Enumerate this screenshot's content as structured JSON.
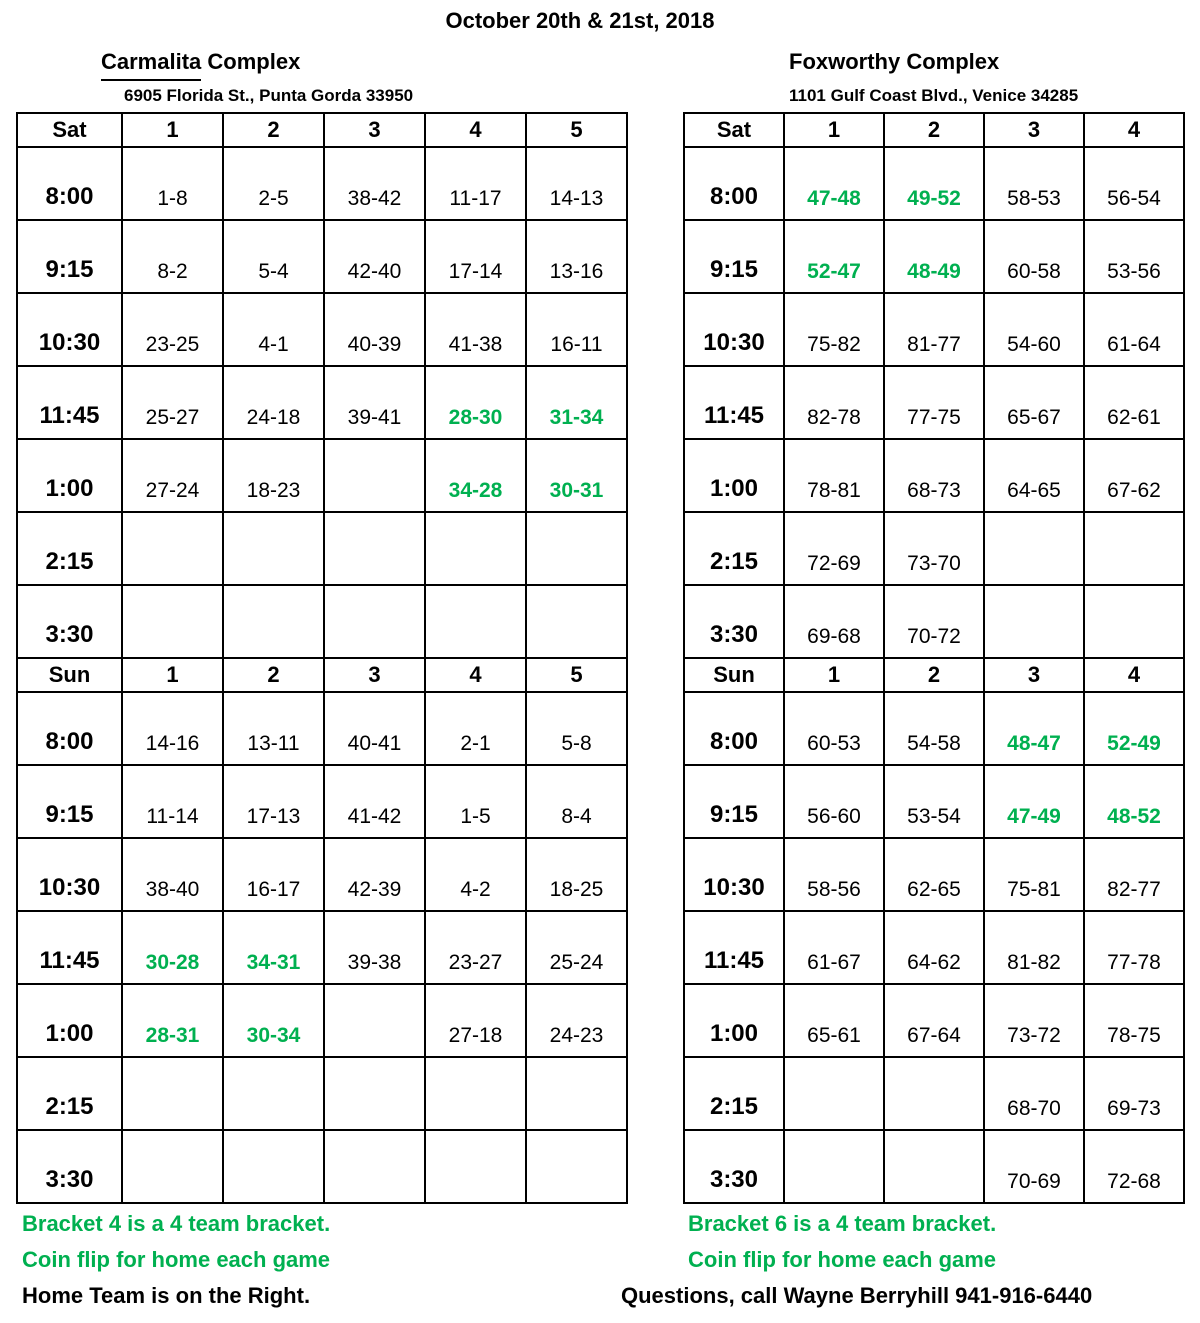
{
  "page": {
    "title": "October 20th & 21st, 2018",
    "green_hex": "#00B050"
  },
  "tables": [
    {
      "id": "carmalita",
      "name_underline": "Carmalita",
      "name_rest": " Complex",
      "address": "6905 Florida St., Punta Gorda 33950",
      "columns": [
        "1",
        "2",
        "3",
        "4",
        "5"
      ],
      "sections": [
        {
          "day": "Sat",
          "rows": [
            {
              "time": "8:00",
              "cells": [
                "1-8",
                "2-5",
                "38-42",
                "11-17",
                "14-13"
              ],
              "green_cols": []
            },
            {
              "time": "9:15",
              "cells": [
                "8-2",
                "5-4",
                "42-40",
                "17-14",
                "13-16"
              ],
              "green_cols": []
            },
            {
              "time": "10:30",
              "cells": [
                "23-25",
                "4-1",
                "40-39",
                "41-38",
                "16-11"
              ],
              "green_cols": []
            },
            {
              "time": "11:45",
              "cells": [
                "25-27",
                "24-18",
                "39-41",
                "28-30",
                "31-34"
              ],
              "green_cols": [
                3,
                4
              ]
            },
            {
              "time": "1:00",
              "cells": [
                "27-24",
                "18-23",
                "",
                "34-28",
                "30-31"
              ],
              "green_cols": [
                3,
                4
              ]
            },
            {
              "time": "2:15",
              "cells": [
                "",
                "",
                "",
                "",
                ""
              ],
              "green_cols": []
            },
            {
              "time": "3:30",
              "cells": [
                "",
                "",
                "",
                "",
                ""
              ],
              "green_cols": []
            }
          ]
        },
        {
          "day": "Sun",
          "rows": [
            {
              "time": "8:00",
              "cells": [
                "14-16",
                "13-11",
                "40-41",
                "2-1",
                "5-8"
              ],
              "green_cols": []
            },
            {
              "time": "9:15",
              "cells": [
                "11-14",
                "17-13",
                "41-42",
                "1-5",
                "8-4"
              ],
              "green_cols": []
            },
            {
              "time": "10:30",
              "cells": [
                "38-40",
                "16-17",
                "42-39",
                "4-2",
                "18-25"
              ],
              "green_cols": []
            },
            {
              "time": "11:45",
              "cells": [
                "30-28",
                "34-31",
                "39-38",
                "23-27",
                "25-24"
              ],
              "green_cols": [
                0,
                1
              ]
            },
            {
              "time": "1:00",
              "cells": [
                "28-31",
                "30-34",
                "",
                "27-18",
                "24-23"
              ],
              "green_cols": [
                0,
                1
              ]
            },
            {
              "time": "2:15",
              "cells": [
                "",
                "",
                "",
                "",
                ""
              ],
              "green_cols": []
            },
            {
              "time": "3:30",
              "cells": [
                "",
                "",
                "",
                "",
                ""
              ],
              "green_cols": []
            }
          ]
        }
      ],
      "notes": [
        {
          "text": "Bracket 4 is a 4 team bracket.",
          "green": true
        },
        {
          "text": "Coin flip for home each game",
          "green": true
        },
        {
          "text": "Home Team is on the Right.",
          "green": false
        }
      ]
    },
    {
      "id": "foxworthy",
      "name_underline": "",
      "name_rest": "Foxworthy Complex",
      "address": "1101 Gulf Coast Blvd., Venice 34285",
      "columns": [
        "1",
        "2",
        "3",
        "4"
      ],
      "sections": [
        {
          "day": "Sat",
          "rows": [
            {
              "time": "8:00",
              "cells": [
                "47-48",
                "49-52",
                "58-53",
                "56-54"
              ],
              "green_cols": [
                0,
                1
              ]
            },
            {
              "time": "9:15",
              "cells": [
                "52-47",
                "48-49",
                "60-58",
                "53-56"
              ],
              "green_cols": [
                0,
                1
              ]
            },
            {
              "time": "10:30",
              "cells": [
                "75-82",
                "81-77",
                "54-60",
                "61-64"
              ],
              "green_cols": []
            },
            {
              "time": "11:45",
              "cells": [
                "82-78",
                "77-75",
                "65-67",
                "62-61"
              ],
              "green_cols": []
            },
            {
              "time": "1:00",
              "cells": [
                "78-81",
                "68-73",
                "64-65",
                "67-62"
              ],
              "green_cols": []
            },
            {
              "time": "2:15",
              "cells": [
                "72-69",
                "73-70",
                "",
                ""
              ],
              "green_cols": []
            },
            {
              "time": "3:30",
              "cells": [
                "69-68",
                "70-72",
                "",
                ""
              ],
              "green_cols": []
            }
          ]
        },
        {
          "day": "Sun",
          "rows": [
            {
              "time": "8:00",
              "cells": [
                "60-53",
                "54-58",
                "48-47",
                "52-49"
              ],
              "green_cols": [
                2,
                3
              ]
            },
            {
              "time": "9:15",
              "cells": [
                "56-60",
                "53-54",
                "47-49",
                "48-52"
              ],
              "green_cols": [
                2,
                3
              ]
            },
            {
              "time": "10:30",
              "cells": [
                "58-56",
                "62-65",
                "75-81",
                "82-77"
              ],
              "green_cols": []
            },
            {
              "time": "11:45",
              "cells": [
                "61-67",
                "64-62",
                "81-82",
                "77-78"
              ],
              "green_cols": []
            },
            {
              "time": "1:00",
              "cells": [
                "65-61",
                "67-64",
                "73-72",
                "78-75"
              ],
              "green_cols": []
            },
            {
              "time": "2:15",
              "cells": [
                "",
                "",
                "68-70",
                "69-73"
              ],
              "green_cols": []
            },
            {
              "time": "3:30",
              "cells": [
                "",
                "",
                "70-69",
                "72-68"
              ],
              "green_cols": []
            }
          ]
        }
      ],
      "notes": [
        {
          "text": "Bracket 6 is a 4 team bracket.",
          "green": true
        },
        {
          "text": "Coin flip for home each game",
          "green": true
        },
        {
          "text": "Questions, call Wayne Berryhill 941-916-6440",
          "green": false
        }
      ]
    }
  ]
}
